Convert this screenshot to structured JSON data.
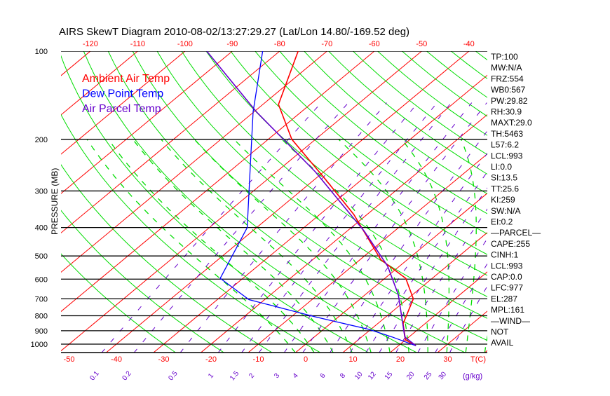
{
  "chart_data": {
    "type": "line",
    "subtype": "skew-t",
    "title": "AIRS SkewT Diagram 2010-08-02/13:27:29.27 (Lat/Lon 14.80/-169.52 deg)",
    "ylabel": "PRESSURE (MB)",
    "xlabel": "T(C)",
    "mixing_ratio_unit": "(g/kg)",
    "pressure_ticks": [
      100,
      200,
      300,
      400,
      500,
      600,
      700,
      800,
      900,
      1000
    ],
    "pressure_range": [
      100,
      1070
    ],
    "top_temp_ticks": [
      -120,
      -110,
      -100,
      -90,
      -80,
      -70,
      -60,
      -50,
      -40
    ],
    "bottom_temp_ticks": [
      -50,
      -40,
      -30,
      -20,
      -10,
      0,
      10,
      20,
      30
    ],
    "mixing_ratio_labels": [
      "0.1",
      "0.2",
      "0.5",
      "1",
      "1.5",
      "2",
      "3",
      "4",
      "6",
      "8",
      "10",
      "12",
      "15",
      "20",
      "25",
      "30"
    ],
    "legend": [
      {
        "label": "Ambient Air Temp",
        "color": "#ff0000"
      },
      {
        "label": "Dew Point Temp",
        "color": "#0000ff"
      },
      {
        "label": "Air Parcel Temp",
        "color": "#6600cc"
      }
    ],
    "series": [
      {
        "name": "Ambient Air Temp",
        "color": "#ff0000",
        "points": [
          [
            100,
            -76.1
          ],
          [
            152,
            -66.7
          ],
          [
            200,
            -55.0
          ],
          [
            273,
            -37.9
          ],
          [
            361,
            -22.8
          ],
          [
            515,
            -5.6
          ],
          [
            596,
            4.4
          ],
          [
            700,
            11.2
          ],
          [
            852,
            15.4
          ],
          [
            967,
            20.0
          ],
          [
            1013,
            23.7
          ]
        ]
      },
      {
        "name": "Dew Point Temp",
        "color": "#0000ff",
        "points": [
          [
            100,
            -83.6
          ],
          [
            161,
            -70.2
          ],
          [
            249,
            -56.7
          ],
          [
            400,
            -42.0
          ],
          [
            596,
            -34.8
          ],
          [
            705,
            -23.3
          ],
          [
            807,
            -4.9
          ],
          [
            890,
            9.5
          ],
          [
            945,
            16.4
          ],
          [
            1013,
            23.7
          ]
        ]
      },
      {
        "name": "Air Parcel Temp",
        "color": "#6600cc",
        "points": [
          [
            100,
            -95.4
          ],
          [
            161,
            -69.5
          ],
          [
            258,
            -41.8
          ],
          [
            412,
            -16.3
          ],
          [
            542,
            -2.5
          ],
          [
            678,
            7.0
          ],
          [
            945,
            19.1
          ],
          [
            1013,
            23.7
          ]
        ]
      }
    ]
  },
  "stats": [
    "TP:100",
    "MW:N/A",
    "FRZ:554",
    "WB0:567",
    "PW:29.82",
    "RH:30.9",
    "MAXT:29.0",
    "TH:5463",
    "L57:6.2",
    "LCL:993",
    "LI:0.0",
    "SI:13.5",
    "TT:25.6",
    "KI:259",
    "SW:N/A",
    "EI:0.2",
    "—PARCEL—",
    "CAPE:255",
    "CINH:1",
    "LCL:993",
    "CAP:0.0",
    "LFC:977",
    "EL:287",
    "MPL:161",
    "—WIND—",
    "NOT",
    "AVAIL"
  ]
}
